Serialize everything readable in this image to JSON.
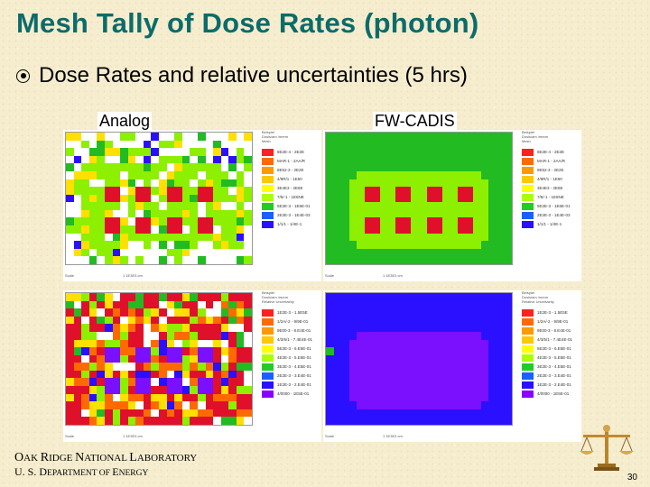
{
  "title": "Mesh Tally of Dose Rates (photon)",
  "bullet": "Dose Rates and relative uncertainties (5 hrs)",
  "columns": {
    "left": "Analog",
    "right": "FW-CADIS"
  },
  "panels": [
    {
      "id": "analog-dose",
      "legend_header": [
        "Beispiel",
        "Dosis/am /mrem",
        "Mesh"
      ],
      "legend": [
        "8E2E-4 - 2E2E",
        "MAR-1 - 2AA/R",
        "8E52-3 - 2E2E",
        "4/9R/1 - 1E50",
        "3E4E3 - 2E6E",
        "7/5/-1 - 1E6NE",
        "5E2E-3 - 1E6E-01",
        "2E2E-3 - 1E4E-03",
        "1/1/1 - 1/4E-1"
      ],
      "legend_colors": [
        "#ff2020",
        "#ff6a00",
        "#ff9900",
        "#ffc800",
        "#ffff00",
        "#aaff00",
        "#22cc22",
        "#1a60ff",
        "#2a10ff"
      ],
      "scale_label": "Scale",
      "scale_value": "1 1E3E3 cm"
    },
    {
      "id": "cadis-dose",
      "legend_header": [
        "Beispiel",
        "Dosis/am /mrem",
        "Mesh"
      ],
      "legend": [
        "8E2E-4 - 2E2E",
        "MAR-1 - 2AA/R",
        "8E52-3 - 2E2E",
        "4/9R/1 - 1E50",
        "3E4E3 - 2E6E",
        "7/5/-1 - 1E6NE",
        "5E2E-3 - 1E6E-01",
        "2E2E-3 - 1E4E-03",
        "1/1/1 - 1/4E-1"
      ],
      "legend_colors": [
        "#ff2020",
        "#ff6a00",
        "#ff9900",
        "#ffc800",
        "#ffff00",
        "#aaff00",
        "#22cc22",
        "#1a60ff",
        "#2a10ff"
      ],
      "scale_label": "Scale",
      "scale_value": "1 1E3E3 cm"
    },
    {
      "id": "analog-err",
      "legend_header": [
        "Beispiel",
        "Dosis/am /mrem",
        "Relative Uncertainty"
      ],
      "legend": [
        "1E2E-3 - 1.5E5E",
        "1/2A/-2 - 9/9E-01",
        "9E00-3 - 8.E4E-01",
        "4/3/5/1 - 7.4E4E-01",
        "5E2E-3 - 6.E5E-01",
        "4E2E-3 - 5.E5E-01",
        "3E2E-3 - 4.E5E-01",
        "2E2E-3 - 3.E4E-01",
        "1E2E-3 - 2.E4E-01",
        "4/0000 - 1E5E-01"
      ],
      "legend_colors": [
        "#ff2020",
        "#ff6a00",
        "#ff9900",
        "#ffc800",
        "#ffff00",
        "#aaff00",
        "#22cc22",
        "#1a60ff",
        "#2a10ff",
        "#8a00ff"
      ],
      "scale_label": "Scale",
      "scale_value": "1 1E3E3 cm"
    },
    {
      "id": "cadis-err",
      "legend_header": [
        "Beispiel",
        "Dosis/am /mrem",
        "Relative Uncertainty"
      ],
      "legend": [
        "1E2E-3 - 1.5E5E",
        "1/2A/-2 - 9/9E-01",
        "9E00-3 - 8.E4E-01",
        "4/3/5/1 - 7.4E4E-01",
        "5E2E-3 - 6.E5E-01",
        "4E2E-3 - 5.E5E-01",
        "3E2E-3 - 4.E5E-01",
        "2E2E-3 - 3.E4E-01",
        "1E2E-3 - 2.E4E-01",
        "4/0000 - 1E5E-01"
      ],
      "legend_colors": [
        "#ff2020",
        "#ff6a00",
        "#ff9900",
        "#ffc800",
        "#ffff00",
        "#aaff00",
        "#22cc22",
        "#1a60ff",
        "#2a10ff",
        "#8a00ff"
      ],
      "scale_label": "Scale",
      "scale_value": "1 1E3E3 cm"
    }
  ],
  "footer": {
    "org_caps": [
      "O",
      "R",
      "N",
      "L"
    ],
    "org_rest": [
      "AK ",
      "IDGE ",
      "ATIONAL ",
      "ABORATORY"
    ],
    "dept_caps": [
      "D",
      "E"
    ],
    "dept_prefix": "U. S. ",
    "dept_rest": [
      "EPARTMENT OF ",
      "NERGY"
    ],
    "page_number": "30"
  },
  "colors": {
    "title": "#0d6b6a",
    "red": "#e0102a",
    "orange": "#ff6a00",
    "yellow": "#ffe000",
    "lime": "#8cf000",
    "green": "#22bb22",
    "blue": "#2a10ff",
    "violet": "#7a10ff",
    "white": "#ffffff"
  },
  "icons": [
    "scales-of-justice-icon"
  ]
}
